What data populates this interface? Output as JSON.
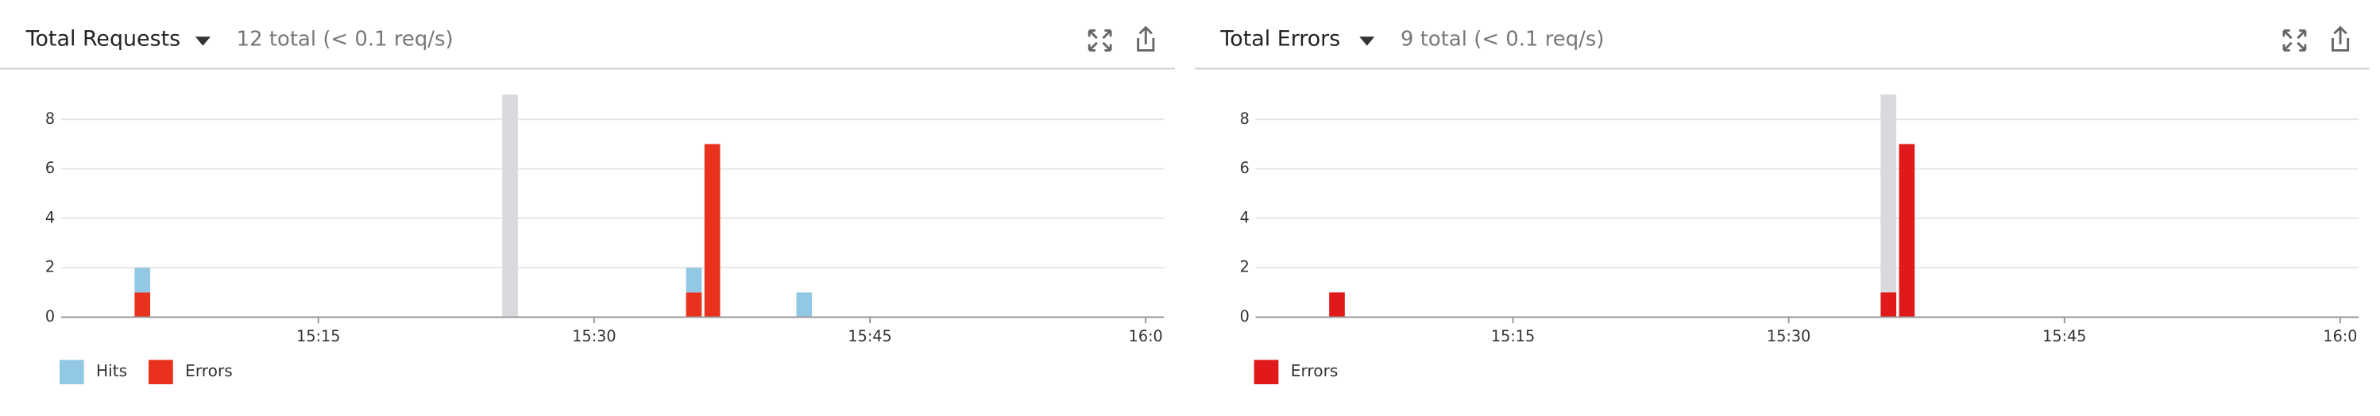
{
  "chart_data": [
    {
      "type": "bar",
      "stacked": true,
      "title": "Total Requests",
      "subtitle": "12 total (< 0.1 req/s)",
      "x": [
        "15:05",
        "15:35",
        "15:36",
        "15:41"
      ],
      "series": [
        {
          "name": "Errors",
          "color": "#e8321e",
          "values": [
            1,
            1,
            7,
            0
          ]
        },
        {
          "name": "Hits",
          "color": "#93c8e4",
          "values": [
            1,
            1,
            0,
            1
          ]
        }
      ],
      "legend_order": [
        "Hits",
        "Errors"
      ],
      "highlight": "15:25",
      "xlim": [
        "15:01",
        "16:01"
      ],
      "xticks": [
        "15:15",
        "15:30",
        "15:45",
        "16:0"
      ],
      "ylim": [
        0,
        9
      ],
      "yticks": [
        0,
        2,
        4,
        6,
        8
      ],
      "grid": true
    },
    {
      "type": "bar",
      "stacked": true,
      "title": "Total Errors",
      "subtitle": "9 total (< 0.1 req/s)",
      "x": [
        "15:05",
        "15:35",
        "15:36"
      ],
      "series": [
        {
          "name": "Errors",
          "color": "#e01a1a",
          "values": [
            1,
            1,
            7
          ]
        }
      ],
      "legend_order": [
        "Errors"
      ],
      "highlight": "15:35",
      "xlim": [
        "15:01",
        "16:01"
      ],
      "xticks": [
        "15:15",
        "15:30",
        "15:45",
        "16:0"
      ],
      "ylim": [
        0,
        9
      ],
      "yticks": [
        0,
        2,
        4,
        6,
        8
      ],
      "grid": true
    }
  ]
}
